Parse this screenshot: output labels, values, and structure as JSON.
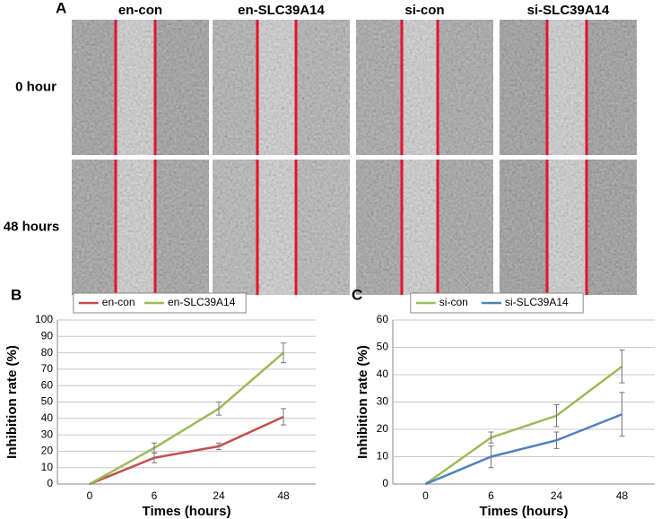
{
  "panel_a": {
    "label": "A",
    "columns": [
      "en-con",
      "en-SLC39A14",
      "si-con",
      "si-SLC39A14"
    ],
    "rows": [
      "0 hour",
      "48 hours"
    ]
  },
  "chart_data": [
    {
      "type": "line",
      "panel_label": "B",
      "x_label": "Times (hours)",
      "y_label": "Inhibition rate (%)",
      "categories": [
        "0",
        "6",
        "24",
        "48"
      ],
      "series": [
        {
          "name": "en-con",
          "color": "#c0504d",
          "values": [
            0,
            16,
            23,
            41
          ],
          "errors": [
            0,
            3,
            2,
            5
          ]
        },
        {
          "name": "en-SLC39A14",
          "color": "#9bbb59",
          "values": [
            0,
            22,
            46,
            80
          ],
          "errors": [
            0,
            3,
            4,
            6
          ]
        }
      ],
      "ylim": [
        0,
        100
      ],
      "yticks": [
        0,
        10,
        20,
        30,
        40,
        50,
        60,
        70,
        80,
        90,
        100
      ],
      "grid": true,
      "legend": "top"
    },
    {
      "type": "line",
      "panel_label": "C",
      "x_label": "Times (hours)",
      "y_label": "Inhibition rate (%)",
      "categories": [
        "0",
        "6",
        "24",
        "48"
      ],
      "series": [
        {
          "name": "si-con",
          "color": "#9bbb59",
          "values": [
            0,
            17,
            25,
            43
          ],
          "errors": [
            0,
            2,
            4,
            6
          ]
        },
        {
          "name": "si-SLC39A14",
          "color": "#4f81bd",
          "values": [
            0,
            10,
            16,
            25.5
          ],
          "errors": [
            0,
            4,
            3,
            8
          ]
        }
      ],
      "ylim": [
        0,
        60
      ],
      "yticks": [
        0,
        10,
        20,
        30,
        40,
        50,
        60
      ],
      "grid": true,
      "legend": "top"
    }
  ]
}
